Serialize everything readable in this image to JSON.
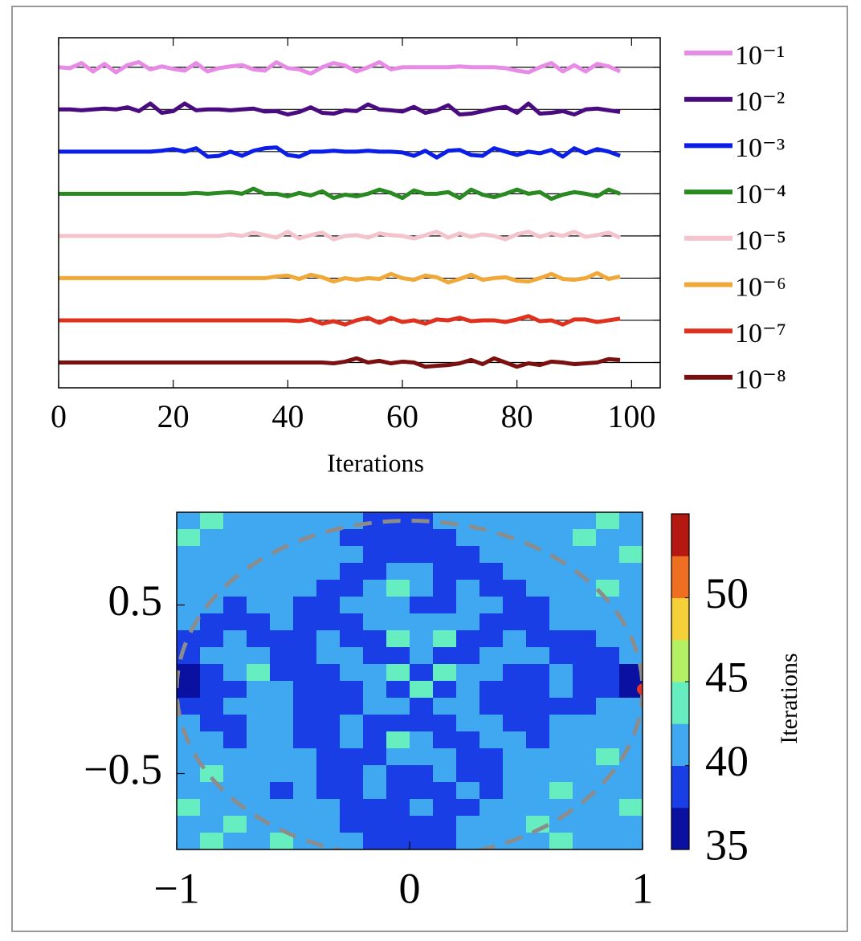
{
  "chart_data": [
    {
      "type": "line",
      "xlabel": "Iterations",
      "x": [
        0,
        2,
        4,
        6,
        8,
        10,
        12,
        14,
        16,
        18,
        20,
        22,
        24,
        26,
        28,
        30,
        32,
        34,
        36,
        38,
        40,
        42,
        44,
        46,
        48,
        50,
        52,
        54,
        56,
        58,
        60,
        62,
        64,
        66,
        68,
        70,
        72,
        74,
        76,
        78,
        80,
        82,
        84,
        86,
        88,
        90,
        92,
        94,
        96,
        98
      ],
      "xlim": [
        0,
        105
      ],
      "xticks": [
        0,
        20,
        40,
        60,
        80,
        100
      ],
      "ylim": [
        0.4,
        8.7
      ],
      "yticks": [
        1,
        2,
        3,
        4,
        5,
        6,
        7,
        8
      ],
      "grid": true,
      "legend": "right",
      "series": [
        {
          "name": "10⁻¹",
          "color": "#e88be6",
          "values": [
            8.0,
            7.98,
            8.1,
            7.9,
            8.08,
            7.88,
            8.05,
            8.12,
            7.95,
            8.02,
            7.96,
            7.92,
            8.1,
            7.9,
            7.98,
            8.02,
            8.05,
            7.95,
            7.92,
            8.12,
            7.98,
            7.95,
            7.85,
            8.0,
            8.1,
            8.04,
            7.9,
            8.0,
            8.12,
            7.95,
            8.0,
            8.0,
            8.0,
            8.0,
            8.0,
            8.02,
            8.0,
            8.0,
            8.0,
            7.98,
            7.92,
            7.88,
            8.0,
            8.1,
            7.9,
            8.05,
            7.9,
            8.08,
            8.02,
            7.9
          ]
        },
        {
          "name": "10⁻²",
          "color": "#4a0a80",
          "values": [
            7,
            7,
            6.98,
            7,
            7.02,
            7,
            7.05,
            6.96,
            7.14,
            6.92,
            6.96,
            7.14,
            6.98,
            7,
            7,
            6.98,
            7,
            7.02,
            6.95,
            6.96,
            6.88,
            6.94,
            7.05,
            6.92,
            6.9,
            6.98,
            6.96,
            7.12,
            7.0,
            6.98,
            6.95,
            7.06,
            6.92,
            6.98,
            7.1,
            6.88,
            6.9,
            6.96,
            7.02,
            7.06,
            6.92,
            7.14,
            6.9,
            6.92,
            6.96,
            6.88,
            7.0,
            7.02,
            6.98,
            6.94
          ]
        },
        {
          "name": "10⁻³",
          "color": "#0a1ee6",
          "values": [
            6,
            6,
            6,
            6,
            6,
            6,
            6,
            6,
            6,
            6.02,
            6.06,
            6.0,
            6.08,
            5.88,
            5.9,
            6.0,
            5.9,
            6.02,
            6.08,
            6.1,
            5.92,
            5.88,
            6.0,
            6.0,
            6.02,
            6.0,
            6.0,
            6.02,
            6.0,
            6.0,
            5.98,
            5.9,
            6.02,
            5.86,
            6.02,
            6.04,
            5.92,
            5.9,
            6.08,
            6.0,
            5.92,
            6.0,
            5.96,
            6.04,
            5.88,
            6.08,
            5.96,
            6.06,
            6.0,
            5.9
          ]
        },
        {
          "name": "10⁻⁴",
          "color": "#2a8a22",
          "values": [
            5,
            5,
            5,
            5,
            5,
            5,
            5,
            5,
            5,
            5,
            5,
            5,
            5.02,
            5,
            5.02,
            5.04,
            5.0,
            5.12,
            5.0,
            5.0,
            4.94,
            5.02,
            4.96,
            5.06,
            4.9,
            4.98,
            4.94,
            5.0,
            5.1,
            5.02,
            4.9,
            5.08,
            5.0,
            5.0,
            5.04,
            4.9,
            5.1,
            4.98,
            4.92,
            5.0,
            5.1,
            5.0,
            5.04,
            4.88,
            4.98,
            5.04,
            5.0,
            4.94,
            5.1,
            5.0
          ]
        },
        {
          "name": "10⁻⁵",
          "color": "#f4c4cc",
          "values": [
            4,
            4,
            4,
            4,
            4,
            4,
            4,
            4,
            4,
            4,
            4,
            4,
            4,
            4,
            4,
            4.04,
            4.0,
            4.08,
            4.02,
            3.96,
            4.1,
            3.94,
            4.02,
            4.08,
            3.92,
            4.0,
            4.02,
            3.96,
            4.06,
            4.02,
            4.0,
            3.94,
            4.02,
            4.1,
            3.96,
            4.06,
            3.98,
            4.04,
            4.0,
            3.92,
            4.04,
            4.1,
            3.98,
            4.06,
            4.0,
            4.1,
            3.98,
            4.02,
            4.08,
            3.96
          ]
        },
        {
          "name": "10⁻⁶",
          "color": "#f0a838",
          "values": [
            3,
            3,
            3,
            3,
            3,
            3,
            3,
            3,
            3,
            3,
            3,
            3,
            3,
            3,
            3,
            3,
            3,
            3,
            3,
            3.04,
            3.06,
            2.98,
            3.08,
            3.02,
            2.92,
            3.0,
            2.96,
            3.0,
            2.98,
            3.1,
            3.0,
            2.96,
            3.06,
            3.02,
            2.9,
            2.98,
            3.08,
            2.96,
            3.0,
            3.02,
            2.94,
            2.92,
            3.0,
            3.1,
            2.98,
            2.96,
            3.0,
            3.12,
            2.98,
            3.04
          ]
        },
        {
          "name": "10⁻⁷",
          "color": "#e0301e",
          "values": [
            2,
            2,
            2,
            2,
            2,
            2,
            2,
            2,
            2,
            2,
            2,
            2,
            2,
            2,
            2,
            2,
            2,
            2,
            2,
            2,
            2,
            1.98,
            2.02,
            1.92,
            1.98,
            1.9,
            2.0,
            2.06,
            1.94,
            2.06,
            1.96,
            2.0,
            1.92,
            2.02,
            2.0,
            2.06,
            1.98,
            2.0,
            2.0,
            1.96,
            2.02,
            2.1,
            1.98,
            2.0,
            1.9,
            2.02,
            2.02,
            1.96,
            2.0,
            2.04
          ]
        },
        {
          "name": "10⁻⁸",
          "color": "#7a1010",
          "values": [
            1,
            1,
            1,
            1,
            1,
            1,
            1,
            1,
            1,
            1,
            1,
            1,
            1,
            1,
            1,
            1,
            1,
            1,
            1,
            1,
            1,
            1,
            1,
            1,
            0.98,
            1.02,
            1.1,
            1.0,
            1.04,
            0.98,
            1.02,
            1.0,
            0.9,
            0.92,
            0.94,
            0.98,
            1.06,
            0.96,
            1.1,
            1.0,
            0.9,
            0.98,
            0.94,
            1.02,
            1.0,
            0.96,
            0.98,
            1.0,
            1.08,
            1.06
          ]
        }
      ]
    },
    {
      "type": "contour",
      "x": [
        -0.95,
        -0.85,
        -0.75,
        -0.65,
        -0.55,
        -0.45,
        -0.35,
        -0.25,
        -0.15,
        -0.05,
        0.05,
        0.15,
        0.25,
        0.35,
        0.45,
        0.55,
        0.65,
        0.75,
        0.85,
        0.95
      ],
      "y": [
        1.0,
        0.9,
        0.8,
        0.7,
        0.6,
        0.5,
        0.4,
        0.3,
        0.2,
        0.1,
        0.0,
        -0.1,
        -0.2,
        -0.3,
        -0.4,
        -0.5,
        -0.6,
        -0.7,
        -0.8,
        -0.9
      ],
      "xlim": [
        -1,
        1
      ],
      "ylim": [
        -0.95,
        1.05
      ],
      "xticks": [
        {
          "value": -1,
          "label": "−1"
        },
        0,
        1
      ],
      "yticks": [
        0.5,
        {
          "value": -0.5,
          "label": "−0.5"
        }
      ],
      "circle_radius": 1,
      "highlight": [
        1,
        0
      ],
      "highlight_color": "#e8352a",
      "circle_color": "#8c8c8c",
      "colorbar": {
        "label": "Iterations",
        "clim": [
          35,
          55
        ],
        "ticks": [
          35,
          40,
          45,
          50
        ],
        "levels": [
          35,
          37.5,
          40,
          42.5,
          45,
          47.5,
          50,
          52.5,
          55
        ],
        "colors": [
          "#0a10a0",
          "#1a3ee6",
          "#3fa8f0",
          "#66eec0",
          "#b4f064",
          "#f6d038",
          "#ee6e22",
          "#b41810"
        ]
      },
      "z": [
        [
          41,
          43,
          41,
          41,
          41,
          41,
          41,
          41,
          39,
          39,
          39,
          41,
          41,
          41,
          41,
          41,
          41,
          41,
          43,
          41
        ],
        [
          43,
          41,
          41,
          41,
          41,
          41,
          41,
          39,
          39,
          39,
          39,
          39,
          41,
          41,
          41,
          41,
          41,
          43,
          41,
          41
        ],
        [
          41,
          41,
          41,
          41,
          41,
          41,
          41,
          41,
          39,
          39,
          39,
          39,
          39,
          41,
          41,
          41,
          41,
          41,
          41,
          43
        ],
        [
          41,
          41,
          41,
          41,
          41,
          41,
          41,
          39,
          39,
          41,
          41,
          39,
          39,
          39,
          41,
          41,
          41,
          41,
          41,
          41
        ],
        [
          41,
          41,
          41,
          41,
          41,
          41,
          39,
          39,
          41,
          43,
          41,
          39,
          41,
          39,
          39,
          41,
          41,
          41,
          43,
          41
        ],
        [
          41,
          41,
          39,
          41,
          41,
          39,
          39,
          41,
          41,
          41,
          39,
          39,
          41,
          41,
          39,
          39,
          41,
          41,
          41,
          41
        ],
        [
          41,
          39,
          39,
          39,
          41,
          39,
          39,
          39,
          41,
          41,
          41,
          41,
          41,
          39,
          39,
          39,
          41,
          41,
          41,
          41
        ],
        [
          39,
          39,
          41,
          39,
          39,
          39,
          41,
          39,
          39,
          43,
          41,
          43,
          39,
          39,
          41,
          39,
          39,
          39,
          41,
          41
        ],
        [
          39,
          41,
          41,
          41,
          39,
          39,
          41,
          41,
          39,
          39,
          41,
          39,
          39,
          41,
          41,
          41,
          39,
          39,
          39,
          41
        ],
        [
          36,
          39,
          41,
          43,
          39,
          39,
          39,
          41,
          41,
          43,
          39,
          43,
          41,
          41,
          39,
          39,
          41,
          39,
          39,
          36
        ],
        [
          36,
          39,
          39,
          41,
          41,
          39,
          39,
          39,
          41,
          39,
          43,
          39,
          41,
          39,
          39,
          39,
          41,
          39,
          39,
          36
        ],
        [
          39,
          39,
          41,
          41,
          41,
          39,
          39,
          39,
          41,
          41,
          39,
          41,
          41,
          39,
          39,
          39,
          39,
          39,
          41,
          41
        ],
        [
          41,
          39,
          39,
          41,
          41,
          39,
          39,
          41,
          39,
          39,
          39,
          39,
          41,
          41,
          39,
          39,
          41,
          41,
          41,
          41
        ],
        [
          41,
          41,
          39,
          41,
          41,
          39,
          39,
          41,
          39,
          43,
          41,
          39,
          39,
          41,
          41,
          39,
          41,
          41,
          41,
          41
        ],
        [
          41,
          41,
          41,
          41,
          41,
          41,
          39,
          39,
          39,
          41,
          41,
          41,
          39,
          39,
          41,
          41,
          41,
          41,
          43,
          41
        ],
        [
          41,
          43,
          41,
          41,
          41,
          41,
          39,
          39,
          41,
          39,
          39,
          41,
          39,
          39,
          41,
          41,
          41,
          41,
          41,
          41
        ],
        [
          41,
          41,
          41,
          41,
          39,
          41,
          39,
          39,
          41,
          39,
          39,
          39,
          41,
          39,
          41,
          41,
          43,
          41,
          41,
          41
        ],
        [
          43,
          41,
          41,
          41,
          41,
          41,
          41,
          39,
          39,
          39,
          41,
          39,
          39,
          41,
          41,
          41,
          41,
          41,
          41,
          43
        ],
        [
          41,
          41,
          43,
          41,
          41,
          41,
          41,
          39,
          39,
          39,
          39,
          39,
          41,
          41,
          41,
          43,
          41,
          41,
          41,
          41
        ],
        [
          41,
          43,
          41,
          41,
          43,
          41,
          41,
          41,
          39,
          39,
          39,
          39,
          41,
          41,
          41,
          41,
          43,
          41,
          41,
          41
        ]
      ]
    }
  ]
}
